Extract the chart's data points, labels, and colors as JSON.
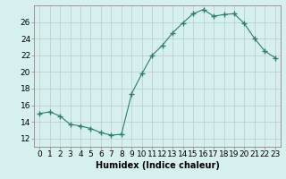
{
  "x": [
    0,
    1,
    2,
    3,
    4,
    5,
    6,
    7,
    8,
    9,
    10,
    11,
    12,
    13,
    14,
    15,
    16,
    17,
    18,
    19,
    20,
    21,
    22,
    23
  ],
  "y": [
    15.0,
    15.2,
    14.7,
    13.7,
    13.5,
    13.2,
    12.7,
    12.4,
    12.5,
    17.4,
    19.8,
    22.0,
    23.2,
    24.7,
    25.9,
    27.0,
    27.5,
    26.7,
    26.9,
    27.0,
    25.8,
    24.0,
    22.5,
    21.7
  ],
  "line_color": "#2e7d6e",
  "marker": "+",
  "marker_size": 4,
  "bg_color": "#d6f0f0",
  "grid_color": "#c0d0d0",
  "xlabel": "Humidex (Indice chaleur)",
  "ylim": [
    11,
    28
  ],
  "xlim": [
    -0.5,
    23.5
  ],
  "yticks": [
    12,
    14,
    16,
    18,
    20,
    22,
    24,
    26
  ],
  "xticks": [
    0,
    1,
    2,
    3,
    4,
    5,
    6,
    7,
    8,
    9,
    10,
    11,
    12,
    13,
    14,
    15,
    16,
    17,
    18,
    19,
    20,
    21,
    22,
    23
  ],
  "xlabel_fontsize": 7,
  "tick_fontsize": 6.5
}
